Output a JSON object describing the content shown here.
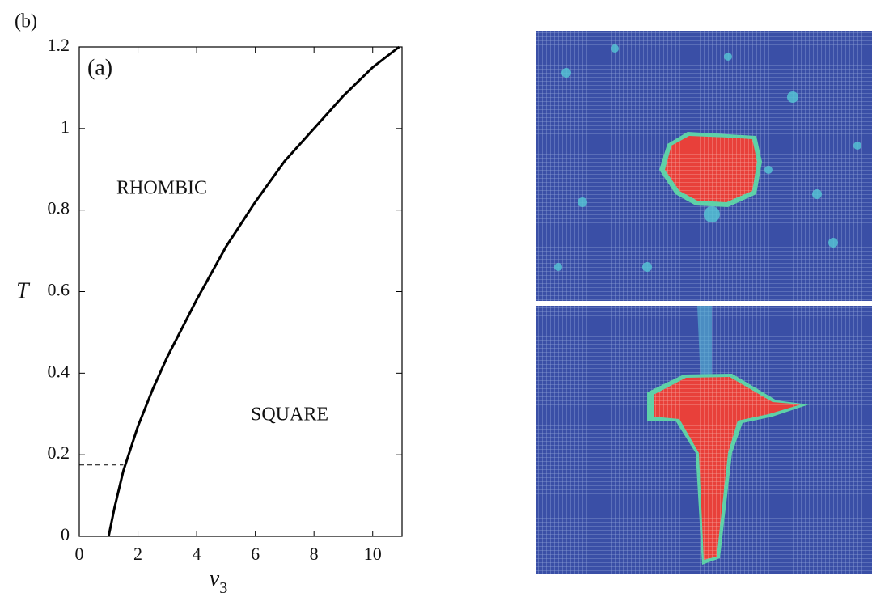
{
  "panel_label": "(b)",
  "chart_data": {
    "type": "line",
    "inset_label": "(a)",
    "x_label": "v",
    "x_label_sub": "3",
    "y_label": "T",
    "annotations": [
      "RHOMBIC",
      "SQUARE"
    ],
    "x": [
      1.0,
      1.2,
      1.5,
      2,
      2.5,
      3,
      4,
      5,
      6,
      7,
      8,
      9,
      10,
      10.9
    ],
    "series": [
      {
        "color": "#000000",
        "values": [
          0,
          0.07,
          0.16,
          0.27,
          0.36,
          0.44,
          0.58,
          0.71,
          0.82,
          0.92,
          1.0,
          1.08,
          1.15,
          1.2
        ]
      }
    ],
    "dashed_line": {
      "x": [
        0,
        1.5
      ],
      "y": [
        0.175,
        0.175
      ]
    },
    "xlim": [
      0,
      11
    ],
    "ylim": [
      0,
      1.2
    ],
    "xticks": [
      0,
      2,
      4,
      6,
      8,
      10
    ],
    "yticks": [
      0,
      0.2,
      0.4,
      0.6,
      0.8,
      1,
      1.2
    ]
  }
}
